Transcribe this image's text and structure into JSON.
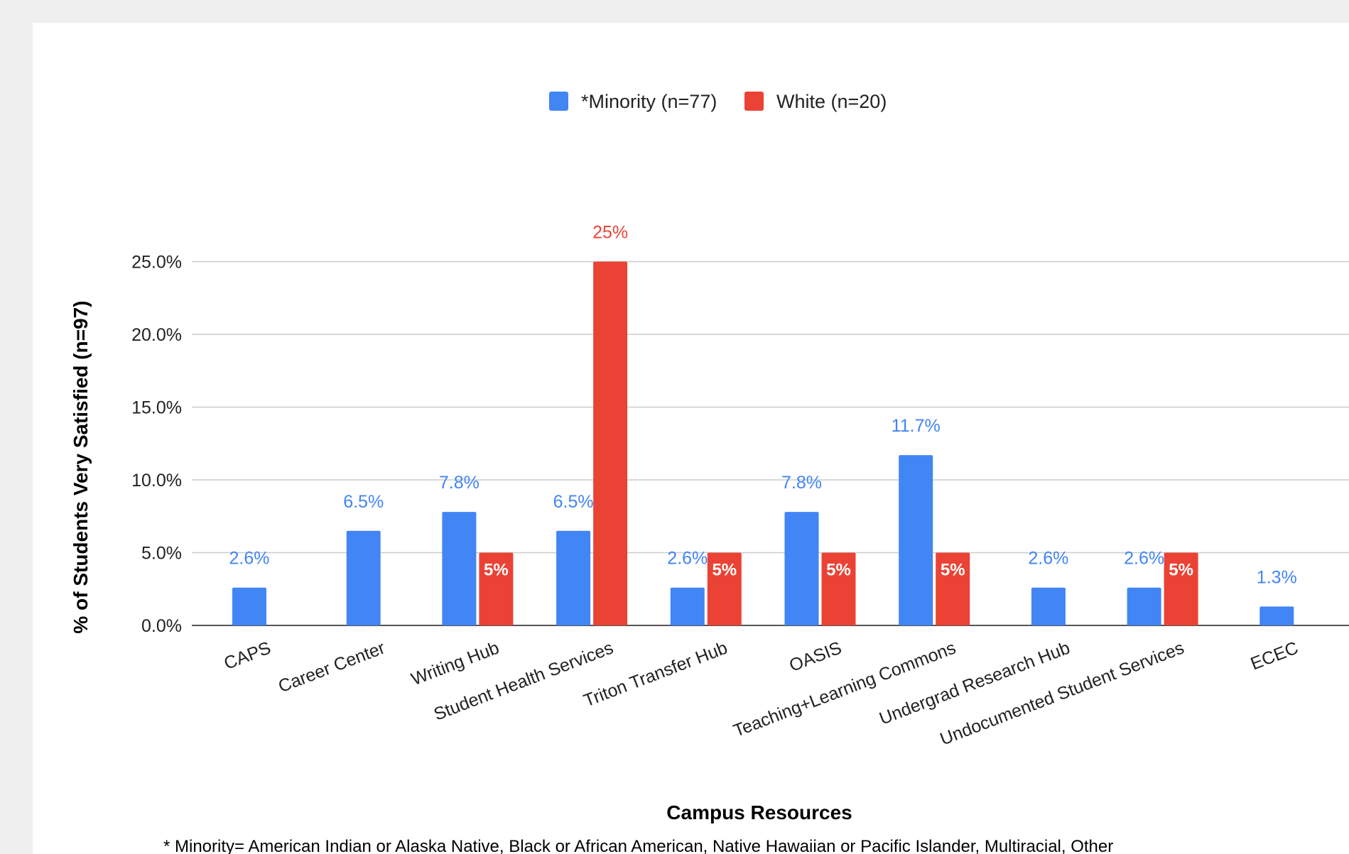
{
  "chart_data": {
    "type": "bar",
    "title": "",
    "xlabel": "Campus Resources",
    "ylabel": "% of Students Very Satisfied (n=97)",
    "ylim": [
      0,
      25
    ],
    "y_ticks": [
      "0.0%",
      "5.0%",
      "10.0%",
      "15.0%",
      "20.0%",
      "25.0%"
    ],
    "grid": true,
    "legend_position": "top-center",
    "categories": [
      "CAPS",
      "Career Center",
      "Writing Hub",
      "Student Health Services",
      "Triton Transfer Hub",
      "OASIS",
      "Teaching+Learning Commons",
      "Undergrad Research Hub",
      "Undocumented Student Services",
      "ECEC"
    ],
    "series": [
      {
        "name": "*Minority (n=77)",
        "color": "#4285f4",
        "values": [
          2.6,
          6.5,
          7.8,
          6.5,
          2.6,
          7.8,
          11.7,
          2.6,
          2.6,
          1.3
        ],
        "labels": [
          "2.6%",
          "6.5%",
          "7.8%",
          "6.5%",
          "2.6%",
          "7.8%",
          "11.7%",
          "2.6%",
          "2.6%",
          "1.3%"
        ]
      },
      {
        "name": "White (n=20)",
        "color": "#ea4335",
        "values": [
          null,
          null,
          5,
          25,
          5,
          5,
          5,
          null,
          5,
          null
        ],
        "labels": [
          "",
          "",
          "5%",
          "25%",
          "5%",
          "5%",
          "5%",
          "",
          "5%",
          ""
        ]
      }
    ],
    "footnote": "* Minority= American Indian or Alaska Native, Black or African American, Native Hawaiian or Pacific Islander, Multiracial, Other"
  }
}
